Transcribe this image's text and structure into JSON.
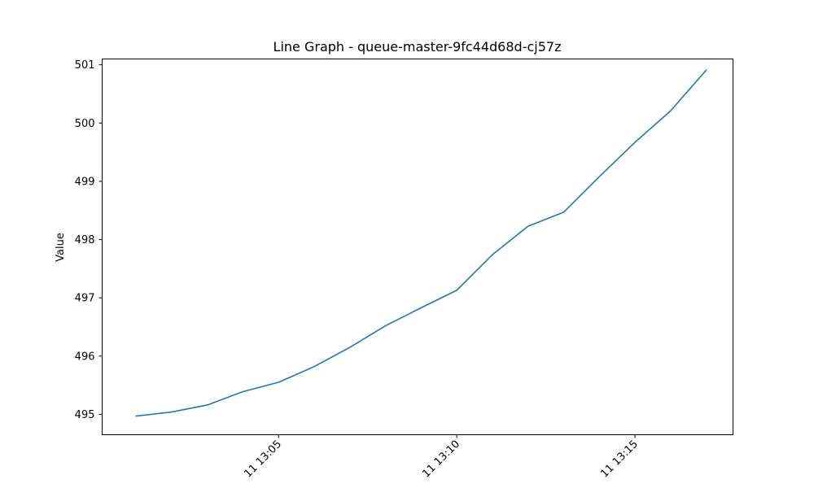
{
  "chart_data": {
    "type": "line",
    "title": "Line Graph - queue-master-9fc44d68d-cj57z",
    "xlabel": "",
    "ylabel": "Value",
    "x_tick_labels": [
      "11 13:05",
      "11 13:10",
      "11 13:15"
    ],
    "y_tick_labels": [
      "495",
      "496",
      "497",
      "498",
      "499",
      "500",
      "501"
    ],
    "ylim": [
      494.65,
      501.1
    ],
    "grid": false,
    "line_color": "#1f77b4",
    "series": [
      {
        "x": [
          "13:01",
          "13:02",
          "13:03",
          "13:04",
          "13:05",
          "13:06",
          "13:07",
          "13:08",
          "13:09",
          "13:10",
          "13:11",
          "13:12",
          "13:13",
          "13:14",
          "13:15",
          "13:16",
          "13:17"
        ],
        "values": [
          494.97,
          495.04,
          495.16,
          495.39,
          495.55,
          495.82,
          496.15,
          496.52,
          496.83,
          497.13,
          497.74,
          498.23,
          498.47,
          499.08,
          499.67,
          500.21,
          500.91
        ]
      }
    ]
  }
}
